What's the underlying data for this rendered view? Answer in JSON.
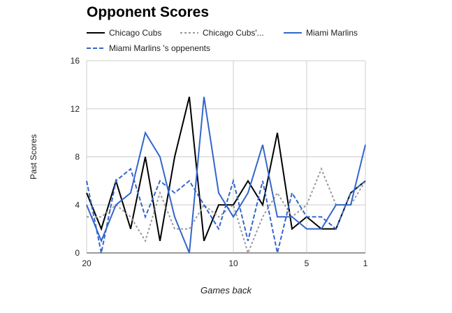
{
  "chart_data": {
    "type": "line",
    "title": "Opponent Scores",
    "xlabel": "Games back",
    "ylabel": "Past Scores",
    "ylim": [
      0,
      16
    ],
    "yticks": [
      0,
      4,
      8,
      12,
      16
    ],
    "xlim": [
      20,
      1
    ],
    "xticks": [
      20,
      10,
      5,
      1
    ],
    "grid": true,
    "legend_position": "top",
    "x": [
      20,
      19,
      18,
      17,
      16,
      15,
      14,
      13,
      12,
      11,
      10,
      9,
      8,
      7,
      6,
      5,
      4,
      3,
      2,
      1
    ],
    "series": [
      {
        "name": "Chicago Cubs",
        "color": "#000000",
        "dash": "solid",
        "values": [
          5,
          2,
          6,
          2,
          8,
          1,
          8,
          13,
          1,
          4,
          4,
          6,
          4,
          10,
          2,
          3,
          2,
          2,
          5,
          6
        ]
      },
      {
        "name": "Chicago Cubs'...",
        "color": "#999999",
        "dash": "dotted",
        "values": [
          3,
          3,
          4,
          3,
          1,
          5,
          2,
          2,
          4,
          3,
          4,
          0,
          3,
          5,
          3,
          4,
          7,
          4,
          4,
          6
        ]
      },
      {
        "name": "Miami Marlins",
        "color": "#3366cc",
        "dash": "solid",
        "values": [
          4,
          1,
          4,
          5,
          10,
          8,
          3,
          0,
          13,
          5,
          3,
          5,
          9,
          3,
          3,
          2,
          2,
          4,
          4,
          9
        ]
      },
      {
        "name": "Miami Marlins 's oppenents",
        "color": "#3366cc",
        "dash": "dashed",
        "values": [
          6,
          0,
          6,
          7,
          3,
          6,
          5,
          6,
          4,
          2,
          6,
          1,
          6,
          0,
          5,
          3,
          3,
          2,
          5,
          6
        ]
      }
    ]
  }
}
